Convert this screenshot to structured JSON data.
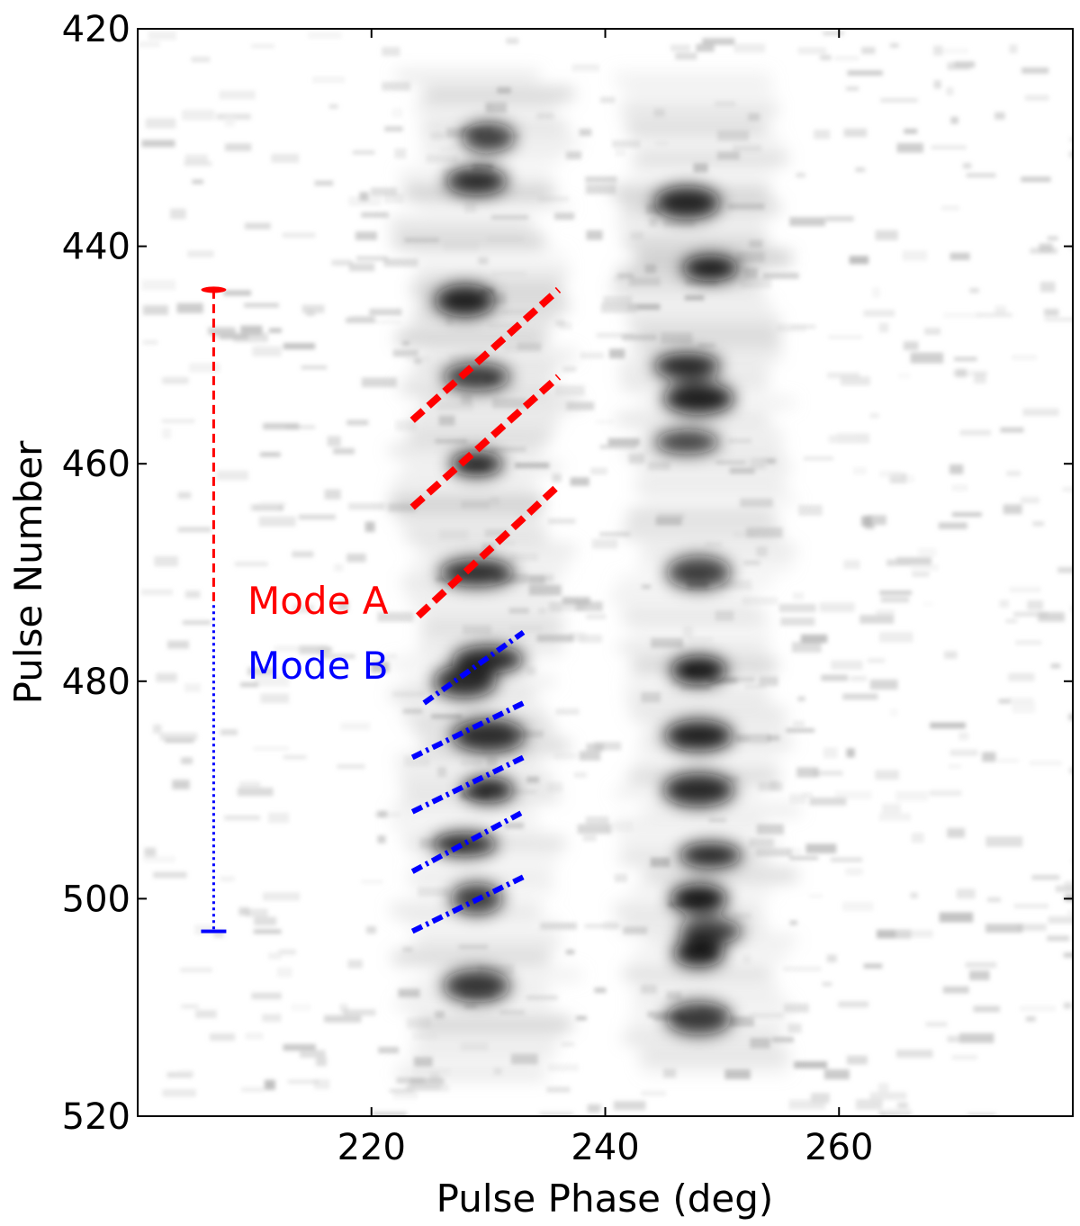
{
  "chart_data": {
    "type": "heatmap",
    "title": "",
    "xlabel": "Pulse Phase (deg)",
    "ylabel": "Pulse Number",
    "xlim": [
      200,
      280
    ],
    "ylim": [
      520,
      420
    ],
    "y_inverted": true,
    "xticks": [
      220,
      240,
      260
    ],
    "xtick_labels": [
      "220",
      "240",
      "260"
    ],
    "yticks": [
      420,
      440,
      460,
      480,
      500,
      520
    ],
    "ytick_labels": [
      "420",
      "440",
      "460",
      "480",
      "500",
      "520"
    ],
    "colormap": "greyscale (black = high intensity)",
    "components": [
      {
        "name": "leading",
        "center_phase": 229
      },
      {
        "name": "trailing",
        "center_phase": 248
      }
    ],
    "bright_spots": [
      {
        "phase": 230,
        "pulse": 430
      },
      {
        "phase": 229,
        "pulse": 434
      },
      {
        "phase": 247,
        "pulse": 436
      },
      {
        "phase": 249,
        "pulse": 442
      },
      {
        "phase": 228,
        "pulse": 445
      },
      {
        "phase": 229,
        "pulse": 452
      },
      {
        "phase": 248,
        "pulse": 454
      },
      {
        "phase": 247,
        "pulse": 451
      },
      {
        "phase": 229,
        "pulse": 460
      },
      {
        "phase": 247,
        "pulse": 458
      },
      {
        "phase": 229,
        "pulse": 470
      },
      {
        "phase": 248,
        "pulse": 470
      },
      {
        "phase": 230,
        "pulse": 478
      },
      {
        "phase": 248,
        "pulse": 479
      },
      {
        "phase": 228,
        "pulse": 480
      },
      {
        "phase": 230,
        "pulse": 485
      },
      {
        "phase": 248,
        "pulse": 485
      },
      {
        "phase": 230,
        "pulse": 490
      },
      {
        "phase": 248,
        "pulse": 490
      },
      {
        "phase": 228,
        "pulse": 495
      },
      {
        "phase": 249,
        "pulse": 496
      },
      {
        "phase": 229,
        "pulse": 500
      },
      {
        "phase": 248,
        "pulse": 500
      },
      {
        "phase": 249,
        "pulse": 503
      },
      {
        "phase": 248,
        "pulse": 505
      },
      {
        "phase": 229,
        "pulse": 508
      },
      {
        "phase": 248,
        "pulse": 511
      }
    ],
    "modes": [
      {
        "name": "Mode A",
        "color": "#ff0000",
        "line_style": "dashed",
        "span_pulses": [
          444,
          473
        ],
        "drift_lines": [
          {
            "x": [
              223.5,
              236
            ],
            "y": [
              456,
              444
            ]
          },
          {
            "x": [
              223.5,
              236
            ],
            "y": [
              464,
              452
            ]
          },
          {
            "x": [
              224,
              236
            ],
            "y": [
              474,
              462
            ]
          }
        ]
      },
      {
        "name": "Mode B",
        "color": "#0000ff",
        "line_style": "dash-dot",
        "span_pulses": [
          473,
          503
        ],
        "drift_lines": [
          {
            "x": [
              224.5,
              233
            ],
            "y": [
              482,
              475.5
            ]
          },
          {
            "x": [
              223.5,
              233
            ],
            "y": [
              487,
              482
            ]
          },
          {
            "x": [
              223.5,
              233
            ],
            "y": [
              492,
              487
            ]
          },
          {
            "x": [
              223.5,
              233
            ],
            "y": [
              497.5,
              492
            ]
          },
          {
            "x": [
              223.5,
              233
            ],
            "y": [
              503,
              498
            ]
          }
        ]
      }
    ],
    "mode_span_marker_phase": 206.5
  }
}
